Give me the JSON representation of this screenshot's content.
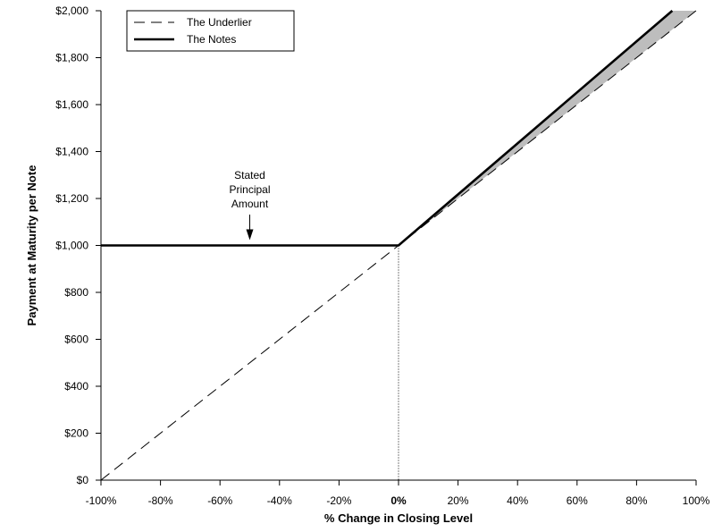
{
  "chart_data": {
    "type": "line",
    "title": "",
    "xlabel": "% Change in Closing Level",
    "ylabel": "Payment at Maturity per Note",
    "xlim": [
      -100,
      100
    ],
    "ylim": [
      0,
      2000
    ],
    "x_ticks": [
      -100,
      -80,
      -60,
      -40,
      -20,
      0,
      20,
      40,
      60,
      80,
      100
    ],
    "x_tick_labels": [
      "-100%",
      "-80%",
      "-60%",
      "-40%",
      "-20%",
      "0%",
      "20%",
      "40%",
      "60%",
      "80%",
      "100%"
    ],
    "y_ticks": [
      0,
      200,
      400,
      600,
      800,
      1000,
      1200,
      1400,
      1600,
      1800,
      2000
    ],
    "y_tick_labels": [
      "$0",
      "$200",
      "$400",
      "$600",
      "$800",
      "$1,000",
      "$1,200",
      "$1,400",
      "$1,600",
      "$1,800",
      "$2,000"
    ],
    "grid": false,
    "legend_position": "top-left",
    "series": [
      {
        "name": "The Underlier",
        "style": "dashed",
        "color": "#000000",
        "x": [
          -100,
          100
        ],
        "y": [
          0,
          2000
        ]
      },
      {
        "name": "The Notes",
        "style": "solid-thick",
        "color": "#000000",
        "x": [
          -100,
          0,
          92
        ],
        "y": [
          1000,
          1000,
          2000
        ]
      }
    ],
    "shaded_region": {
      "color": "#bdbdbd",
      "between": [
        "The Notes",
        "The Underlier"
      ],
      "x_from": 0,
      "x_to": 100
    },
    "reference_line": {
      "x": 0,
      "style": "dotted"
    },
    "annotations": [
      {
        "lines": [
          "Stated",
          "Principal",
          "Amount"
        ],
        "x": -50,
        "y": 1000,
        "arrow": "down"
      }
    ]
  }
}
